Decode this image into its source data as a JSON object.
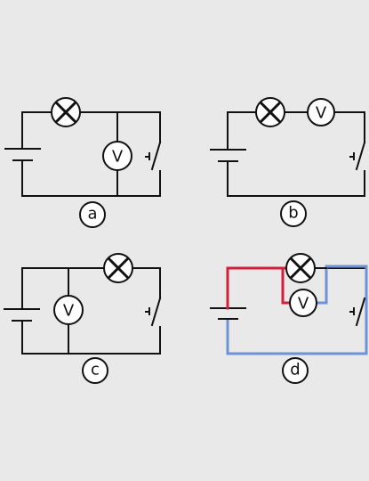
{
  "labels": {
    "a": "a",
    "b": "b",
    "c": "c",
    "d": "d"
  },
  "meters": {
    "voltmeter": "V"
  },
  "colors": {
    "wire": "#111111",
    "highlight_red": "#d21f3c",
    "highlight_blue": "#6e93d6",
    "background": "#e8e9e8"
  }
}
